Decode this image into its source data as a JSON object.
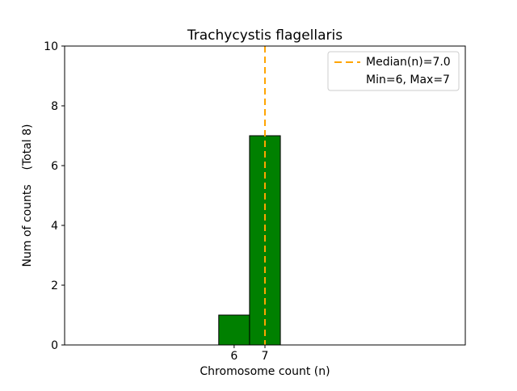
{
  "chart_data": {
    "type": "bar",
    "title": "Trachycystis flagellaris",
    "xlabel": "Chromosome count (n)",
    "ylabel": "Num of counts    (Total 8)",
    "total_counts": 8,
    "categories": [
      6,
      7
    ],
    "values": [
      1,
      7
    ],
    "bar_width": 1,
    "xlim": [
      0.5,
      13.5
    ],
    "ylim": [
      0,
      10
    ],
    "xticks": [
      6,
      7
    ],
    "yticks": [
      0,
      2,
      4,
      6,
      8,
      10
    ],
    "median": 7.0,
    "grid": false,
    "colors": {
      "bar_fill": "#008000",
      "bar_edge": "#000000",
      "median": "#ffa500",
      "legend_border": "#cccccc"
    },
    "legend": {
      "position": "upper right",
      "entries": [
        {
          "label": "Median(n)=7.0",
          "sample": "dashed-line"
        },
        {
          "label": "Min=6, Max=7",
          "sample": "none"
        }
      ]
    }
  }
}
